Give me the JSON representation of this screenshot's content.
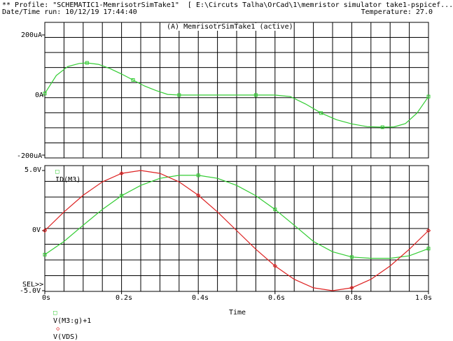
{
  "header": {
    "profile_line": "** Profile: \"SCHEMATIC1-MemrisotrSimTake1\"  [ E:\\Circuts Talha\\OrCad\\1\\memristor simulator take1-pspicef...",
    "datetime_line": "Date/Time run: 10/12/19 17:44:40",
    "temperature_line": "Temperature: 27.0"
  },
  "plot_title": "(A) MemrisotrSimTake1 (active)",
  "x_axis": {
    "label": "Time",
    "ticks": [
      "0s",
      "0.2s",
      "0.4s",
      "0.6s",
      "0.8s",
      "1.0s"
    ]
  },
  "sel_marker": "SEL>>",
  "colors": {
    "green": "#33cc33",
    "red": "#dd2222",
    "grid": "#000000"
  },
  "chart_data": [
    {
      "type": "line",
      "y_ticks": [
        "200uA",
        "0A",
        "-200uA"
      ],
      "ylim": [
        -200,
        200
      ],
      "xlim": [
        0,
        1.0
      ],
      "series": [
        {
          "name": "ID(M3)",
          "color": "#33cc33",
          "marker": "square",
          "x": [
            0,
            0.03,
            0.06,
            0.09,
            0.11,
            0.14,
            0.17,
            0.2,
            0.23,
            0.26,
            0.29,
            0.32,
            0.35,
            0.4,
            0.45,
            0.5,
            0.55,
            0.6,
            0.64,
            0.68,
            0.72,
            0.76,
            0.8,
            0.84,
            0.88,
            0.91,
            0.94,
            0.97,
            1.0
          ],
          "y": [
            5,
            65,
            95,
            105,
            107,
            102,
            88,
            70,
            50,
            30,
            15,
            2,
            0,
            0,
            0,
            0,
            0,
            0,
            -5,
            -30,
            -60,
            -82,
            -96,
            -105,
            -107,
            -106,
            -95,
            -60,
            -5
          ]
        }
      ]
    },
    {
      "type": "line",
      "y_ticks": [
        "5.0V",
        "0V",
        "-5.0V"
      ],
      "ylim": [
        -5,
        5
      ],
      "xlim": [
        0,
        1.0
      ],
      "series": [
        {
          "name": "V(M3:g)+1",
          "color": "#33cc33",
          "marker": "square",
          "x": [
            0,
            0.05,
            0.1,
            0.15,
            0.2,
            0.25,
            0.3,
            0.35,
            0.4,
            0.45,
            0.5,
            0.55,
            0.6,
            0.65,
            0.7,
            0.75,
            0.8,
            0.85,
            0.9,
            0.95,
            1.0
          ],
          "y": [
            -2.0,
            -0.9,
            0.45,
            1.76,
            2.9,
            3.76,
            4.35,
            4.6,
            4.6,
            4.35,
            3.76,
            2.9,
            1.76,
            0.45,
            -0.9,
            -1.76,
            -2.2,
            -2.3,
            -2.3,
            -2.1,
            -1.5
          ]
        },
        {
          "name": "V(VDS)",
          "color": "#dd2222",
          "marker": "diamond",
          "x": [
            0,
            0.05,
            0.1,
            0.15,
            0.2,
            0.25,
            0.3,
            0.35,
            0.4,
            0.45,
            0.5,
            0.55,
            0.6,
            0.65,
            0.7,
            0.75,
            0.8,
            0.85,
            0.9,
            0.95,
            1.0
          ],
          "y": [
            0,
            1.55,
            2.94,
            4.05,
            4.76,
            5.0,
            4.76,
            4.05,
            2.94,
            1.55,
            0,
            -1.55,
            -2.94,
            -4.05,
            -4.76,
            -5.0,
            -4.76,
            -4.05,
            -2.94,
            -1.55,
            0
          ]
        }
      ]
    }
  ]
}
